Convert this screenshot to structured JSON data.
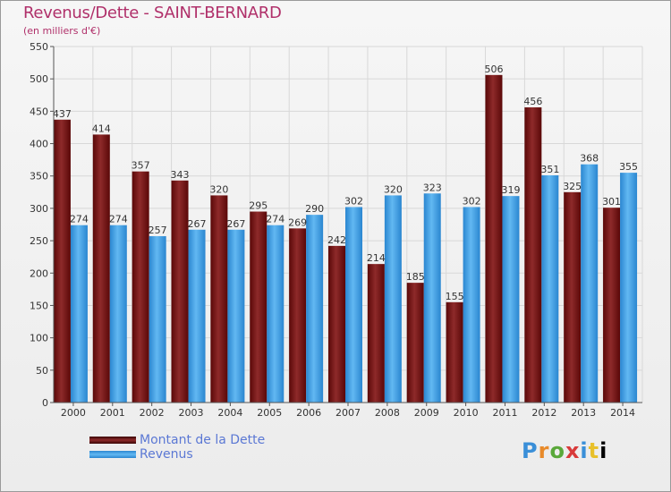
{
  "header": {
    "title": "Revenus/Dette - SAINT-BERNARD",
    "subtitle": "(en milliers d'€)"
  },
  "legend": {
    "items": [
      {
        "label": "Montant de la Dette",
        "color": "#7a1010"
      },
      {
        "label": "Revenus",
        "color": "#3fa0e8"
      }
    ]
  },
  "logo": {
    "text": "Proxiti"
  },
  "chart_data": {
    "type": "bar",
    "title": "Revenus/Dette - SAINT-BERNARD",
    "subtitle": "(en milliers d'€)",
    "categories": [
      "2000",
      "2001",
      "2002",
      "2003",
      "2004",
      "2005",
      "2006",
      "2007",
      "2008",
      "2009",
      "2010",
      "2011",
      "2012",
      "2013",
      "2014"
    ],
    "series": [
      {
        "name": "Montant de la Dette",
        "color": "#7a1010",
        "values": [
          437,
          414,
          357,
          343,
          320,
          295,
          269,
          242,
          214,
          185,
          155,
          506,
          456,
          325,
          301
        ]
      },
      {
        "name": "Revenus",
        "color": "#3fa0e8",
        "values": [
          274,
          274,
          257,
          267,
          267,
          274,
          290,
          302,
          320,
          323,
          302,
          319,
          351,
          368,
          355
        ]
      }
    ],
    "ylim": [
      0,
      550
    ],
    "yticks": [
      0,
      50,
      100,
      150,
      200,
      250,
      300,
      350,
      400,
      450,
      500,
      550
    ],
    "grid": true,
    "legend_position": "bottom-left"
  }
}
